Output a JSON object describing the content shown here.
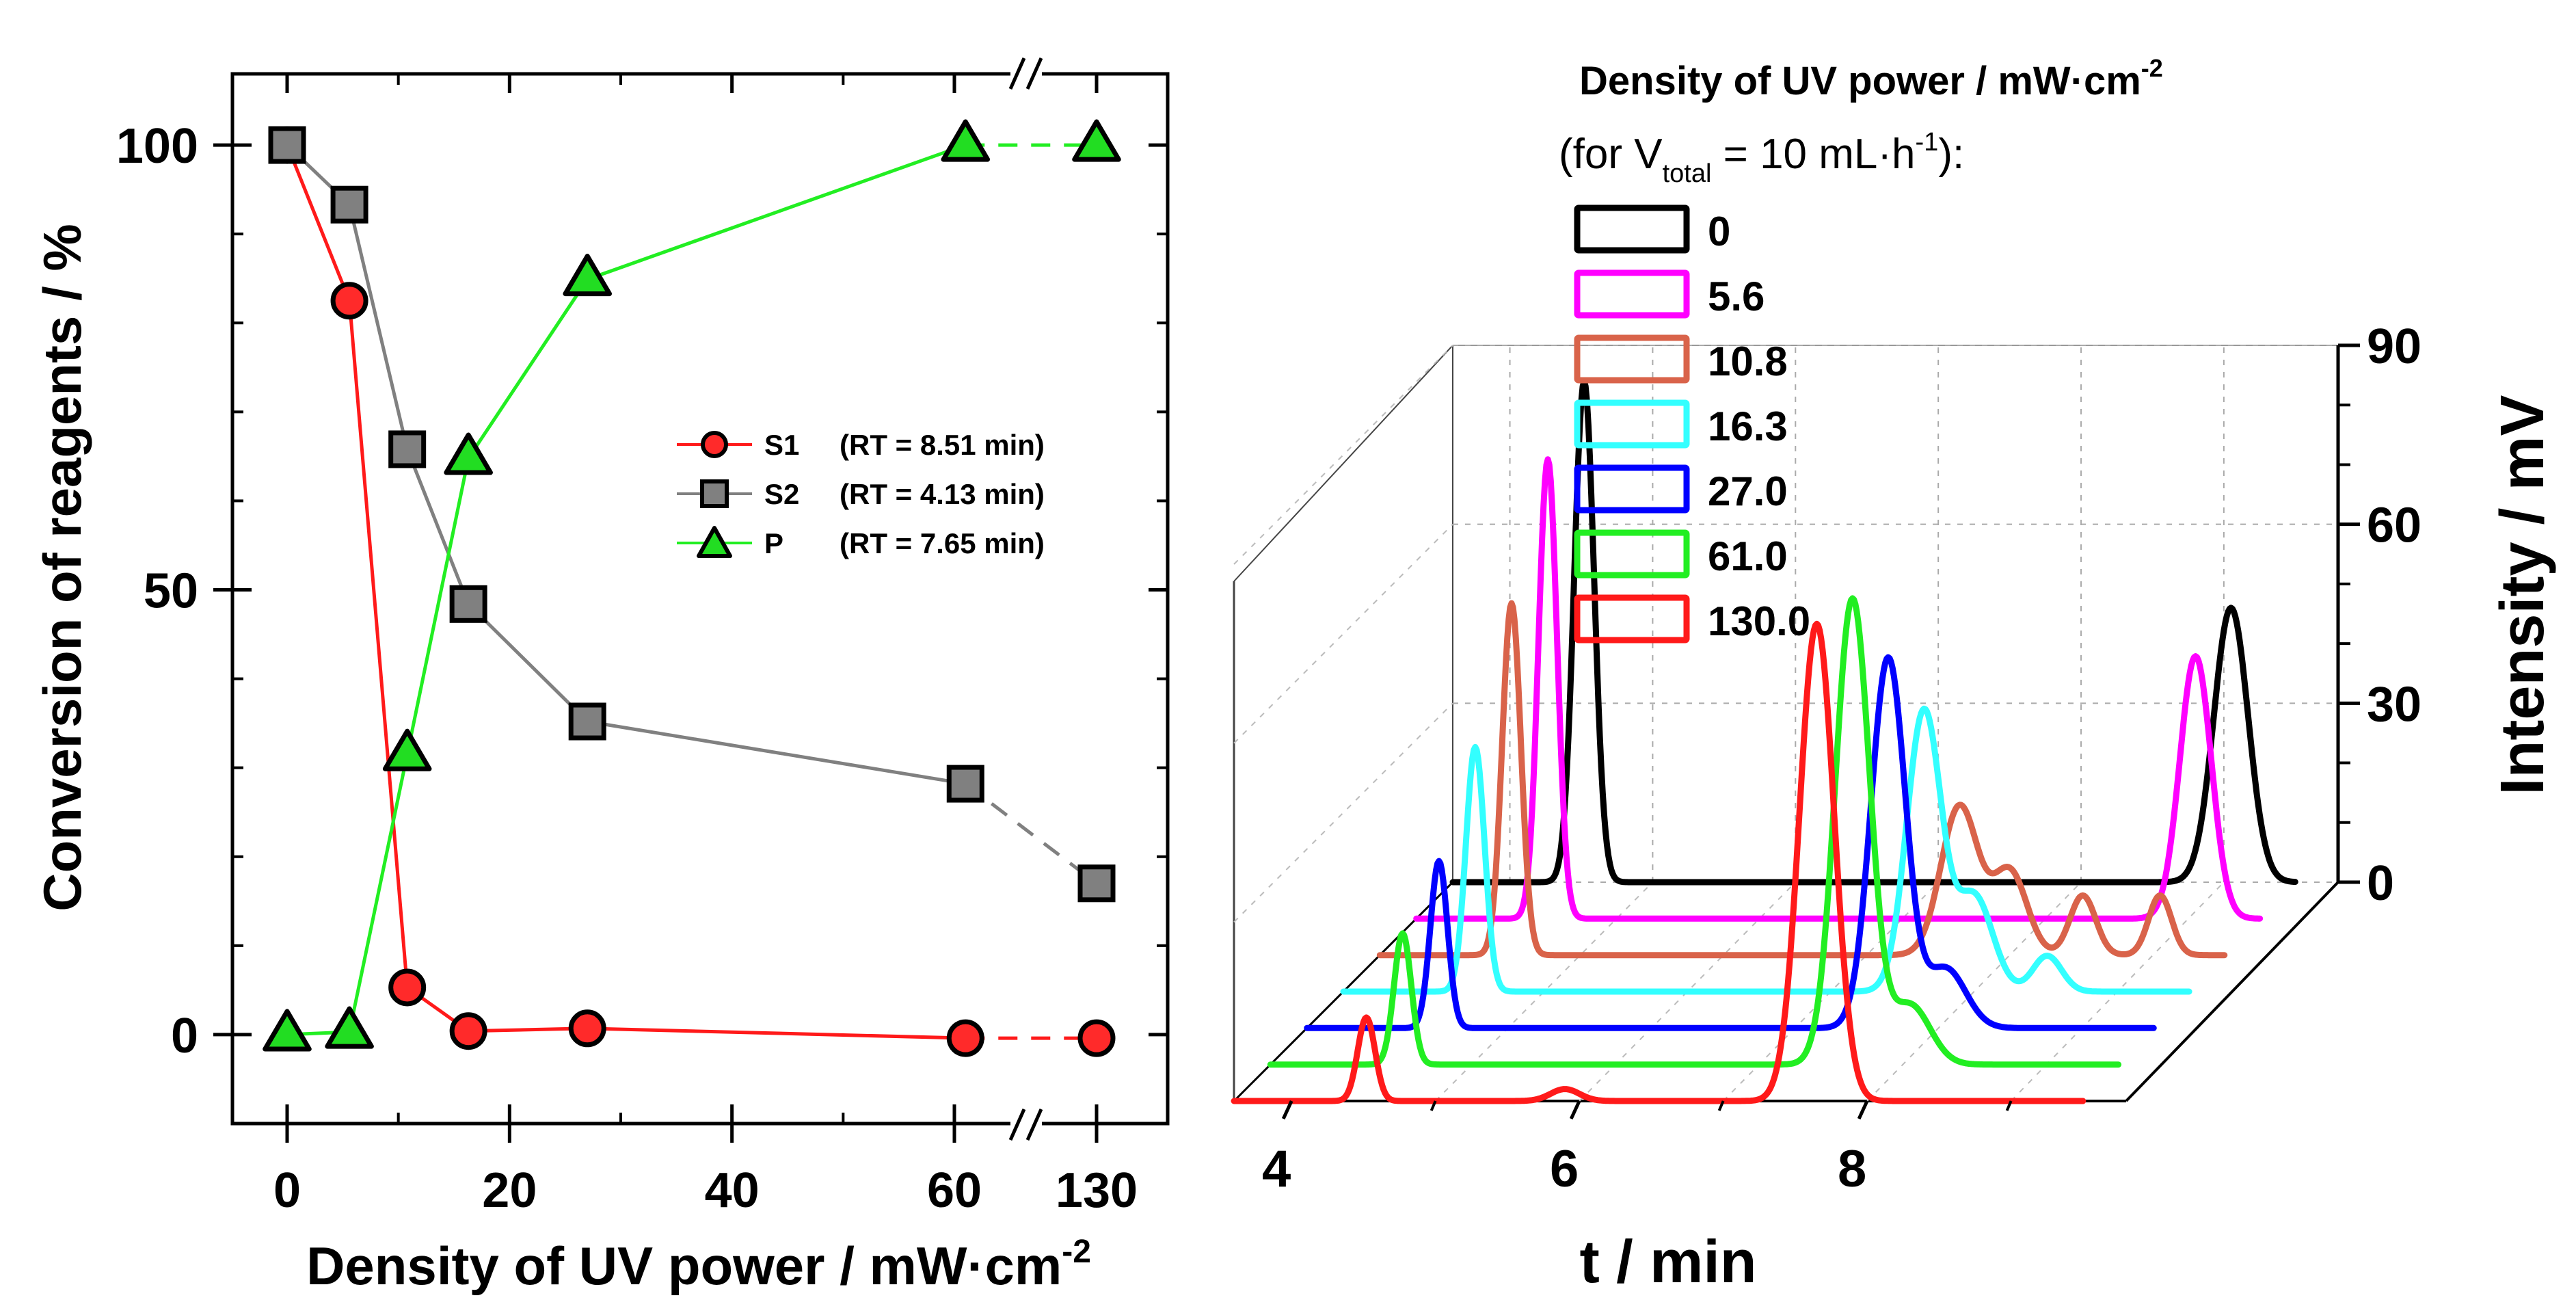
{
  "chart_data": [
    {
      "type": "line",
      "xlabel": "Density of UV power / mW·cm",
      "xlabel_sup": "-2",
      "ylabel": "Conversion of reagents / %",
      "x_axis_break": "//",
      "categories": [
        "0",
        "5.6",
        "10.8",
        "16.3",
        "27.0",
        "61.0",
        "130.0"
      ],
      "x": [
        0,
        5.6,
        10.8,
        16.3,
        27.0,
        61.0,
        130.0
      ],
      "x_tick_labels": [
        "0",
        "20",
        "40",
        "60",
        "130"
      ],
      "x_tick_values": [
        0,
        20,
        40,
        60,
        130
      ],
      "y_tick_labels": [
        "0",
        "50",
        "100"
      ],
      "y_tick_values": [
        0,
        50,
        100
      ],
      "ylim": [
        -10,
        108
      ],
      "legend_position": "center-right",
      "series": [
        {
          "name": "S1",
          "label_name": "S1",
          "label_rt": "(RT = 8.51 min)",
          "marker": "circle",
          "line_color": "#ff1a1a",
          "marker_color": "#ff2a2a",
          "values": [
            100,
            82.5,
            5.3,
            0.4,
            0.7,
            -0.4,
            -0.4
          ]
        },
        {
          "name": "S2",
          "label_name": "S2",
          "label_rt": "(RT = 4.13 min)",
          "marker": "square",
          "line_color": "#808080",
          "marker_color": "#808080",
          "values": [
            100,
            93.3,
            65.8,
            48.4,
            35.2,
            28.2,
            17.0
          ]
        },
        {
          "name": "P",
          "label_name": "P",
          "label_rt": "(RT = 7.65 min)",
          "marker": "triangle",
          "line_color": "#22ee22",
          "marker_color": "#22dd22",
          "values": [
            0,
            0.3,
            31.5,
            64.8,
            84.9,
            100,
            100
          ]
        }
      ]
    },
    {
      "type": "line",
      "subtype": "3d-waterfall",
      "xlabel": "t / min",
      "zlabel": "Intensity / mV",
      "x_tick_labels": [
        "4",
        "6",
        "8"
      ],
      "x_tick_values": [
        4,
        6,
        8
      ],
      "xlim": [
        3.6,
        9.8
      ],
      "z_tick_labels": [
        "0",
        "30",
        "60",
        "90"
      ],
      "z_tick_values": [
        0,
        30,
        60,
        90
      ],
      "zlim": [
        0,
        90
      ],
      "legend_title": "Density of UV power / mW·cm",
      "legend_title_sup": "-2",
      "legend_subtitle_pre": "(for V",
      "legend_subtitle_sub": "total",
      "legend_subtitle_mid": " = 10 mL·h",
      "legend_subtitle_sup": "-1",
      "legend_subtitle_post": "):",
      "series": [
        {
          "name": "0",
          "color": "#000000",
          "peaks": [
            {
              "t": 4.52,
              "h": 84,
              "w": 0.07
            },
            {
              "t": 9.05,
              "h": 46,
              "w": 0.12
            }
          ]
        },
        {
          "name": "5.6",
          "color": "#ff00ff",
          "peaks": [
            {
              "t": 4.52,
              "h": 77,
              "w": 0.065
            },
            {
              "t": 9.05,
              "h": 44,
              "w": 0.11
            }
          ]
        },
        {
          "name": "10.8",
          "color": "#d9634a",
          "peaks": [
            {
              "t": 4.52,
              "h": 59,
              "w": 0.065
            },
            {
              "t": 7.65,
              "h": 25,
              "w": 0.13
            },
            {
              "t": 8.0,
              "h": 14,
              "w": 0.12
            },
            {
              "t": 8.51,
              "h": 10,
              "w": 0.09
            },
            {
              "t": 9.05,
              "h": 10,
              "w": 0.08
            }
          ]
        },
        {
          "name": "16.3",
          "color": "#33ffff",
          "peaks": [
            {
              "t": 4.52,
              "h": 41,
              "w": 0.065
            },
            {
              "t": 7.65,
              "h": 47,
              "w": 0.12
            },
            {
              "t": 8.0,
              "h": 16,
              "w": 0.13
            },
            {
              "t": 8.51,
              "h": 6,
              "w": 0.1
            }
          ]
        },
        {
          "name": "27.0",
          "color": "#0000ff",
          "peaks": [
            {
              "t": 4.52,
              "h": 28,
              "w": 0.06
            },
            {
              "t": 7.65,
              "h": 62,
              "w": 0.12
            },
            {
              "t": 8.05,
              "h": 10,
              "w": 0.14
            }
          ]
        },
        {
          "name": "61.0",
          "color": "#22ee22",
          "peaks": [
            {
              "t": 4.52,
              "h": 22,
              "w": 0.06
            },
            {
              "t": 7.65,
              "h": 78,
              "w": 0.12
            },
            {
              "t": 8.05,
              "h": 10,
              "w": 0.14
            }
          ]
        },
        {
          "name": "130.0",
          "color": "#ff1a1a",
          "peaks": [
            {
              "t": 4.52,
              "h": 14,
              "w": 0.06
            },
            {
              "t": 5.9,
              "h": 2,
              "w": 0.1
            },
            {
              "t": 7.65,
              "h": 80,
              "w": 0.12
            }
          ]
        }
      ]
    }
  ]
}
